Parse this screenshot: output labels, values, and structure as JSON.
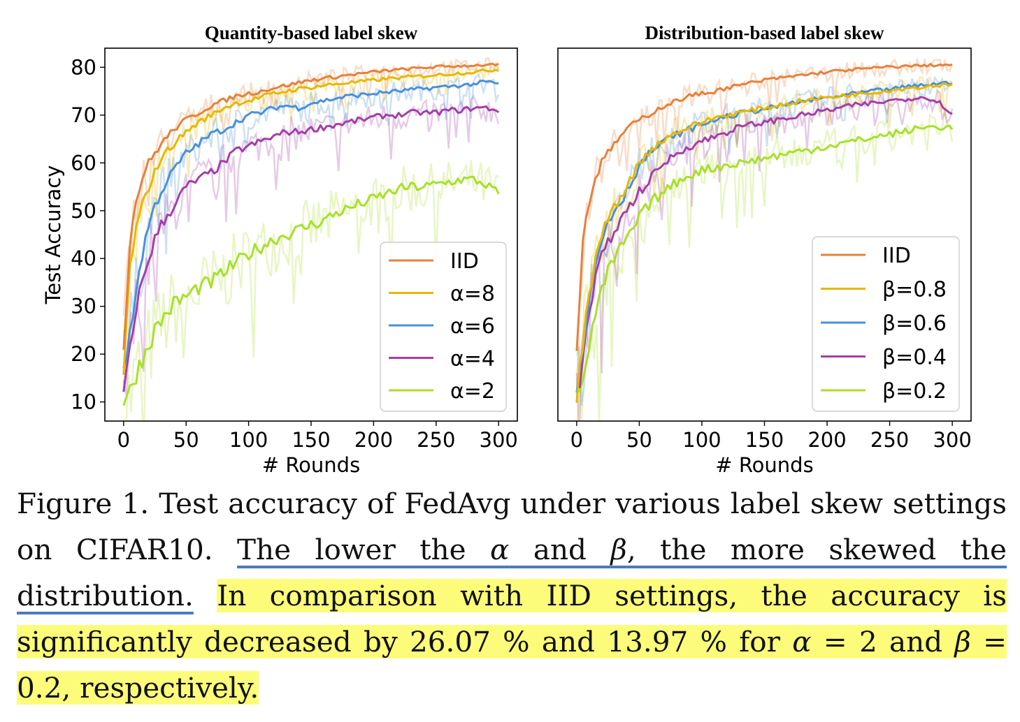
{
  "chart_data": [
    {
      "type": "line",
      "title": "Quantity-based label skew",
      "xlabel": "# Rounds",
      "ylabel": "Test Accuracy",
      "xlim": [
        -15,
        315
      ],
      "ylim": [
        6,
        84
      ],
      "xticks": [
        0,
        50,
        100,
        150,
        200,
        250,
        300
      ],
      "yticks": [
        10,
        20,
        30,
        40,
        50,
        60,
        70,
        80
      ],
      "legend_position": "lower-right",
      "x": [
        0,
        5,
        10,
        15,
        20,
        25,
        30,
        40,
        50,
        60,
        70,
        80,
        90,
        100,
        110,
        120,
        130,
        140,
        150,
        160,
        170,
        180,
        190,
        200,
        210,
        220,
        230,
        240,
        250,
        260,
        270,
        280,
        290,
        300
      ],
      "series": [
        {
          "name": "IID",
          "color": "#e8803a",
          "values": [
            21,
            44,
            52,
            57,
            60,
            62,
            64,
            67,
            69,
            70.5,
            72,
            73,
            74,
            74.5,
            75,
            75.7,
            76.2,
            76.8,
            77.3,
            77.7,
            78,
            78.4,
            78.7,
            79,
            79.3,
            79.5,
            79.7,
            79.9,
            80.1,
            80.2,
            80.3,
            80.4,
            80.5,
            80.5
          ]
        },
        {
          "name": "α=8",
          "color": "#e6b800",
          "values": [
            16,
            38,
            46,
            51,
            55,
            58,
            61,
            64,
            66.5,
            68.5,
            70,
            71.5,
            72.5,
            73,
            73.8,
            74.5,
            75,
            75.5,
            75.8,
            76.2,
            76.5,
            76.8,
            77,
            77.3,
            77.6,
            77.8,
            78,
            78.2,
            78.4,
            78.6,
            78.8,
            79,
            79.3,
            79.5
          ]
        },
        {
          "name": "α=6",
          "color": "#4a90d9",
          "values": [
            15,
            25,
            33,
            41,
            47,
            51,
            54,
            58.5,
            62,
            64,
            66,
            67,
            68.5,
            70,
            70.5,
            71.5,
            72,
            71.5,
            72.5,
            73,
            73.5,
            74,
            74.2,
            74.5,
            74.8,
            75,
            75.3,
            75.5,
            75.8,
            76,
            76.2,
            76.5,
            77,
            76.5
          ]
        },
        {
          "name": "α=4",
          "color": "#a43fa8",
          "values": [
            11.5,
            20,
            30,
            35,
            40,
            44,
            47,
            51,
            55,
            56.5,
            58,
            60,
            62.5,
            63.5,
            64.5,
            65.5,
            66.5,
            66.5,
            67,
            67.5,
            68,
            68.5,
            69,
            69.5,
            70,
            70,
            70.5,
            70.5,
            70.5,
            71,
            71,
            71.5,
            71.5,
            71
          ]
        },
        {
          "name": "α=2",
          "color": "#a8e02a",
          "values": [
            10,
            12,
            16,
            19,
            22,
            25,
            27,
            30.5,
            32,
            34,
            35,
            37,
            39,
            41,
            42.5,
            44,
            45,
            46,
            47,
            48,
            49.5,
            50.5,
            51.5,
            52.5,
            53.5,
            54.5,
            55,
            55,
            55.5,
            56,
            56.5,
            56.5,
            55.5,
            53.5
          ]
        }
      ]
    },
    {
      "type": "line",
      "title": "Distribution-based label skew",
      "xlabel": "# Rounds",
      "ylabel": "",
      "xlim": [
        -15,
        315
      ],
      "ylim": [
        6,
        84
      ],
      "xticks": [
        0,
        50,
        100,
        150,
        200,
        250,
        300
      ],
      "yticks": [],
      "legend_position": "lower-right",
      "x": [
        0,
        5,
        10,
        15,
        20,
        25,
        30,
        40,
        50,
        60,
        70,
        80,
        90,
        100,
        110,
        120,
        130,
        140,
        150,
        160,
        170,
        180,
        190,
        200,
        210,
        220,
        230,
        240,
        250,
        260,
        270,
        280,
        290,
        300
      ],
      "series": [
        {
          "name": "IID",
          "color": "#e8803a",
          "values": [
            21,
            44,
            52,
            57,
            60,
            62,
            64,
            67,
            69,
            70.5,
            72,
            73,
            74,
            74.5,
            75,
            75.7,
            76.2,
            76.8,
            77.3,
            77.7,
            78,
            78.4,
            78.7,
            79,
            79.3,
            79.5,
            79.7,
            79.9,
            80.1,
            80.2,
            80.3,
            80.4,
            80.5,
            80.5
          ]
        },
        {
          "name": "β=0.8",
          "color": "#e6b800",
          "values": [
            12,
            22,
            32,
            40,
            45,
            48,
            51,
            55,
            60,
            63,
            65,
            66.5,
            67.5,
            68.5,
            69.5,
            70,
            70.5,
            71,
            71.5,
            72,
            72.5,
            73,
            73.3,
            73.7,
            74,
            74.3,
            74.6,
            74.9,
            75.2,
            75.5,
            75.8,
            76,
            76.3,
            76.5
          ]
        },
        {
          "name": "β=0.6",
          "color": "#4a90d9",
          "values": [
            11,
            21,
            31,
            39,
            44,
            48,
            50,
            54,
            59.5,
            62.5,
            64.5,
            66,
            67,
            68,
            69,
            69.7,
            70.3,
            70.8,
            71.3,
            71.8,
            72.3,
            72.8,
            73.2,
            73.6,
            74,
            74.4,
            74.8,
            75.1,
            75.4,
            75.8,
            76.1,
            76.4,
            76.6,
            76.8
          ]
        },
        {
          "name": "β=0.4",
          "color": "#a43fa8",
          "values": [
            11,
            19,
            28,
            36,
            40,
            43,
            46,
            50,
            54,
            57,
            60,
            62,
            63.5,
            64.5,
            65.5,
            66.5,
            67.5,
            68,
            68.5,
            69,
            69.5,
            70,
            70.5,
            71,
            71.5,
            72,
            72.3,
            72.6,
            73,
            73.3,
            73.6,
            73.8,
            72.5,
            70.5
          ]
        },
        {
          "name": "β=0.2",
          "color": "#a8e02a",
          "values": [
            10,
            15,
            22,
            28,
            33,
            37,
            40,
            44,
            48.5,
            52,
            54,
            56,
            57.5,
            58.5,
            59,
            59.5,
            60,
            60.5,
            61,
            61.5,
            62,
            62.5,
            63,
            63.5,
            64,
            64.5,
            65,
            65.5,
            66,
            66.5,
            67,
            67.5,
            67.5,
            67.5
          ]
        }
      ]
    }
  ],
  "caption": {
    "part1": "Figure 1.  Test accuracy of FedAvg under various label skew settings on CIFAR10.  ",
    "underlined": {
      "a": "The lower the ",
      "alpha": "α",
      "b": " and ",
      "beta": "β",
      "c": ", the more skewed the distribution."
    },
    "gap": "  ",
    "highlighted": {
      "a": "In comparison with IID settings, the accuracy is significantly decreased by 26.07 % and 13.97 % for ",
      "alpha": "α",
      "b": " = 2 and ",
      "beta": "β",
      "c": " = 0.2, respectively."
    }
  }
}
